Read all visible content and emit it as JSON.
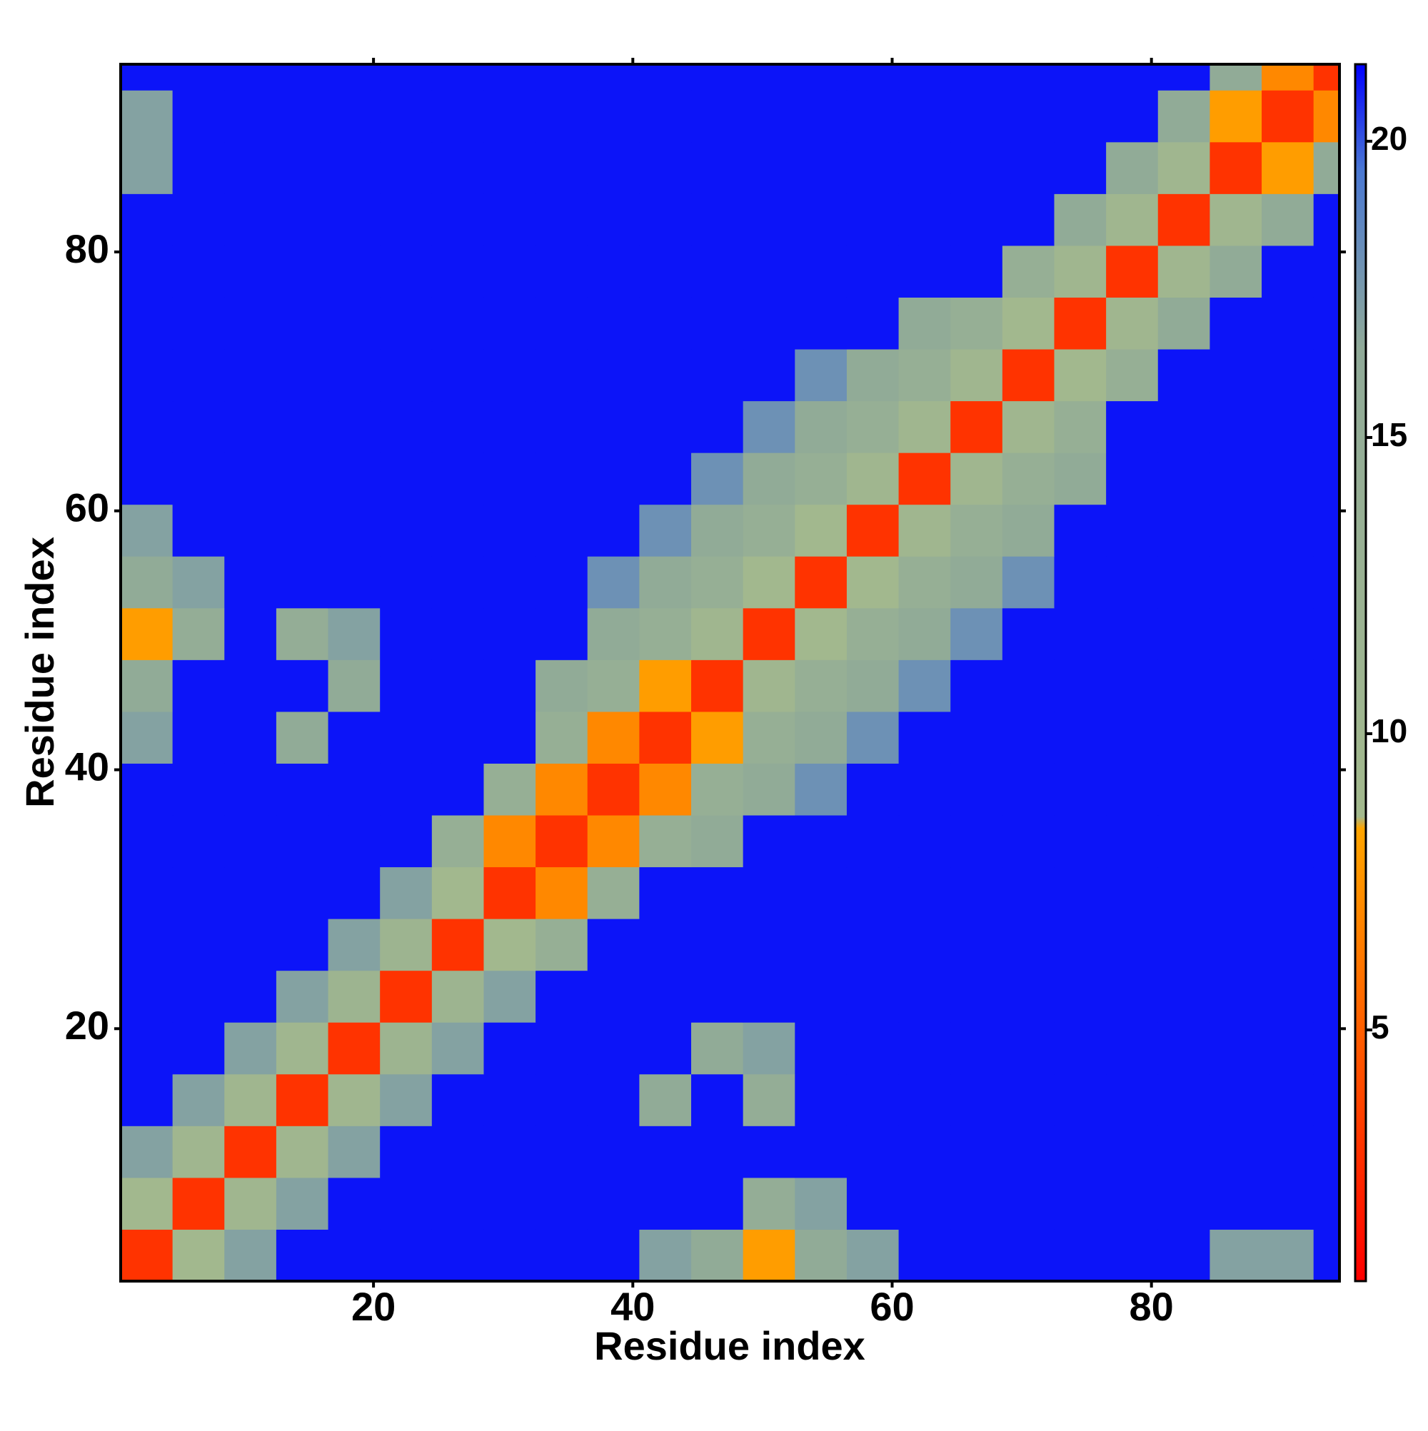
{
  "chart_data": {
    "type": "heatmap",
    "x_label": "Residue index",
    "y_label": "Residue index",
    "x_bins": [
      0.5,
      4.5,
      8.5,
      12.5,
      16.5,
      20.5,
      24.5,
      28.5,
      32.5,
      36.5,
      40.5,
      44.5,
      48.5,
      52.5,
      56.5,
      60.5,
      64.5,
      68.5,
      72.5,
      76.5,
      80.5,
      84.5,
      88.5,
      92.5,
      94.5
    ],
    "y_bins": [
      0.5,
      4.5,
      8.5,
      12.5,
      16.5,
      20.5,
      24.5,
      28.5,
      32.5,
      36.5,
      40.5,
      44.5,
      48.5,
      52.5,
      56.5,
      60.5,
      64.5,
      68.5,
      72.5,
      76.5,
      80.5,
      84.5,
      88.5,
      92.5,
      94.5
    ],
    "values": [
      [
        3,
        9,
        17,
        21,
        21,
        21,
        21,
        21,
        21,
        21,
        17,
        16,
        8,
        16,
        17,
        21,
        21,
        21,
        21,
        21,
        21,
        17,
        17,
        21
      ],
      [
        9,
        3,
        10,
        17,
        21,
        21,
        21,
        21,
        21,
        21,
        21,
        21,
        15,
        17,
        21,
        21,
        21,
        21,
        21,
        21,
        21,
        21,
        21,
        21
      ],
      [
        17,
        10,
        3,
        10,
        17,
        21,
        21,
        21,
        21,
        21,
        21,
        21,
        21,
        21,
        21,
        21,
        21,
        21,
        21,
        21,
        21,
        21,
        21,
        21
      ],
      [
        21,
        17,
        10,
        3,
        10,
        17,
        21,
        21,
        21,
        21,
        16,
        21,
        15,
        21,
        21,
        21,
        21,
        21,
        21,
        21,
        21,
        21,
        21,
        21
      ],
      [
        21,
        21,
        17,
        10,
        3,
        11,
        17,
        21,
        21,
        21,
        21,
        16,
        17,
        21,
        21,
        21,
        21,
        21,
        21,
        21,
        21,
        21,
        21,
        21
      ],
      [
        21,
        21,
        21,
        17,
        11,
        3,
        11,
        17,
        21,
        21,
        21,
        21,
        21,
        21,
        21,
        21,
        21,
        21,
        21,
        21,
        21,
        21,
        21,
        21
      ],
      [
        21,
        21,
        21,
        21,
        17,
        11,
        3,
        9,
        14,
        21,
        21,
        21,
        21,
        21,
        21,
        21,
        21,
        21,
        21,
        21,
        21,
        21,
        21,
        21
      ],
      [
        21,
        21,
        21,
        21,
        21,
        17,
        9,
        3,
        7,
        14,
        21,
        21,
        21,
        21,
        21,
        21,
        21,
        21,
        21,
        21,
        21,
        21,
        21,
        21
      ],
      [
        21,
        21,
        21,
        21,
        21,
        21,
        14,
        7,
        3,
        7,
        14,
        16,
        21,
        21,
        21,
        21,
        21,
        21,
        21,
        21,
        21,
        21,
        21,
        21
      ],
      [
        21,
        21,
        21,
        21,
        21,
        21,
        21,
        14,
        7,
        3,
        7,
        14,
        16,
        18,
        21,
        21,
        21,
        21,
        21,
        21,
        21,
        21,
        21,
        21
      ],
      [
        17,
        21,
        21,
        16,
        21,
        21,
        21,
        21,
        14,
        7,
        3,
        8,
        14,
        16,
        18,
        21,
        21,
        21,
        21,
        21,
        21,
        21,
        21,
        21
      ],
      [
        16,
        21,
        21,
        21,
        16,
        21,
        21,
        21,
        16,
        14,
        8,
        3,
        10,
        14,
        16,
        18,
        21,
        21,
        21,
        21,
        21,
        21,
        21,
        21
      ],
      [
        8,
        15,
        21,
        15,
        17,
        21,
        21,
        21,
        21,
        16,
        14,
        10,
        3,
        9,
        14,
        16,
        18,
        21,
        21,
        21,
        21,
        21,
        21,
        21
      ],
      [
        16,
        17,
        21,
        21,
        21,
        21,
        21,
        21,
        21,
        18,
        16,
        14,
        9,
        3,
        9,
        14,
        16,
        18,
        21,
        21,
        21,
        21,
        21,
        21
      ],
      [
        17,
        21,
        21,
        21,
        21,
        21,
        21,
        21,
        21,
        21,
        18,
        16,
        14,
        9,
        3,
        10,
        14,
        16,
        21,
        21,
        21,
        21,
        21,
        21
      ],
      [
        21,
        21,
        21,
        21,
        21,
        21,
        21,
        21,
        21,
        21,
        21,
        18,
        16,
        14,
        10,
        3,
        10,
        14,
        16,
        21,
        21,
        21,
        21,
        21
      ],
      [
        21,
        21,
        21,
        21,
        21,
        21,
        21,
        21,
        21,
        21,
        21,
        21,
        18,
        16,
        14,
        10,
        3,
        10,
        14,
        21,
        21,
        21,
        21,
        21
      ],
      [
        21,
        21,
        21,
        21,
        21,
        21,
        21,
        21,
        21,
        21,
        21,
        21,
        21,
        18,
        16,
        14,
        10,
        3,
        9,
        14,
        21,
        21,
        21,
        21
      ],
      [
        21,
        21,
        21,
        21,
        21,
        21,
        21,
        21,
        21,
        21,
        21,
        21,
        21,
        21,
        21,
        16,
        14,
        9,
        3,
        10,
        16,
        21,
        21,
        21
      ],
      [
        21,
        21,
        21,
        21,
        21,
        21,
        21,
        21,
        21,
        21,
        21,
        21,
        21,
        21,
        21,
        21,
        21,
        14,
        10,
        3,
        10,
        16,
        21,
        21
      ],
      [
        21,
        21,
        21,
        21,
        21,
        21,
        21,
        21,
        21,
        21,
        21,
        21,
        21,
        21,
        21,
        21,
        21,
        21,
        16,
        10,
        3,
        10,
        16,
        21
      ],
      [
        17,
        21,
        21,
        21,
        21,
        21,
        21,
        21,
        21,
        21,
        21,
        21,
        21,
        21,
        21,
        21,
        21,
        21,
        21,
        16,
        10,
        3,
        8,
        16
      ],
      [
        17,
        21,
        21,
        21,
        21,
        21,
        21,
        21,
        21,
        21,
        21,
        21,
        21,
        21,
        21,
        21,
        21,
        21,
        21,
        21,
        16,
        8,
        3,
        7
      ],
      [
        21,
        21,
        21,
        21,
        21,
        21,
        21,
        21,
        21,
        21,
        21,
        21,
        21,
        21,
        21,
        21,
        21,
        21,
        21,
        21,
        21,
        16,
        7,
        3
      ]
    ],
    "xlim": [
      0.5,
      94.5
    ],
    "ylim": [
      0.5,
      94.5
    ],
    "xticks": [
      20,
      40,
      60,
      80
    ],
    "yticks": [
      20,
      40,
      60,
      80
    ],
    "zlim": [
      0.76,
      21.3
    ],
    "zticks": [
      5,
      10,
      15,
      20
    ],
    "colormap": [
      {
        "value": 0.76,
        "color": "#ff0000"
      },
      {
        "value": 4,
        "color": "#ff4a00"
      },
      {
        "value": 8.4,
        "color": "#ffa500"
      },
      {
        "value": 8.6,
        "color": "#a3b98d"
      },
      {
        "value": 16.5,
        "color": "#90aa98"
      },
      {
        "value": 19.5,
        "color": "#4a78d2"
      },
      {
        "value": 21.3,
        "color": "#0000ff"
      }
    ]
  }
}
